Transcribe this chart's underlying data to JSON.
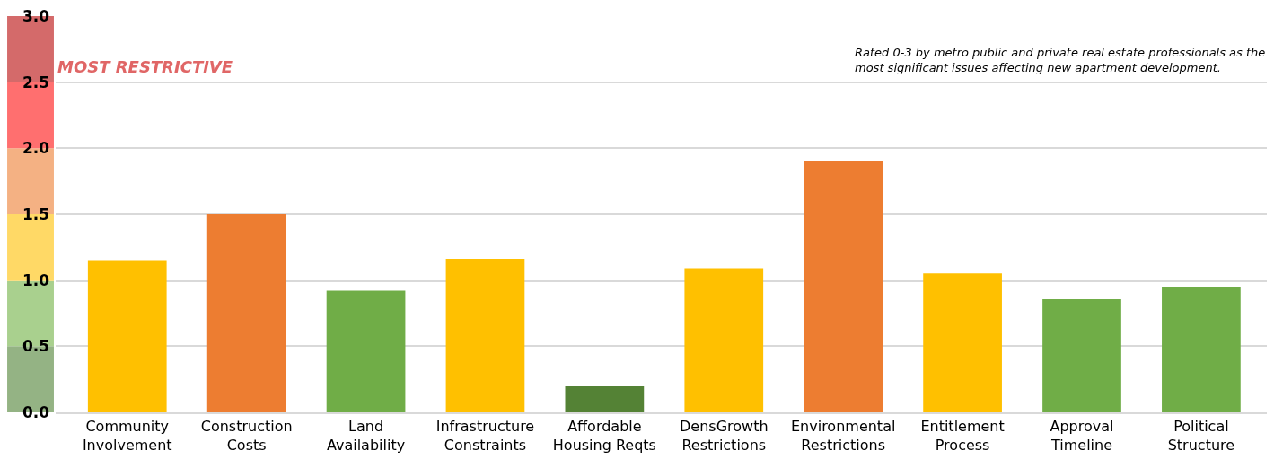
{
  "chart_data": {
    "type": "bar",
    "categories": [
      "Community Involvement",
      "Construction Costs",
      "Land Availability",
      "Infrastructure Constraints",
      "Affordable Housing Reqts",
      "DensGrowth Restrictions",
      "Environmental Restrictions",
      "Entitlement Process",
      "Approval Timeline",
      "Political Structure"
    ],
    "values": [
      1.15,
      1.5,
      0.92,
      1.16,
      0.2,
      1.09,
      1.9,
      1.05,
      0.86,
      0.95
    ],
    "colors": [
      "#ffc000",
      "#ed7d31",
      "#70ad47",
      "#ffc000",
      "#548235",
      "#ffc000",
      "#ed7d31",
      "#ffc000",
      "#70ad47",
      "#70ad47"
    ],
    "ylim": [
      0,
      3
    ],
    "yticks": [
      {
        "value": 0,
        "label": "0.0"
      },
      {
        "value": 0.5,
        "label": "0.5"
      },
      {
        "value": 1,
        "label": "1.0"
      },
      {
        "value": 1.5,
        "label": "1.5"
      },
      {
        "value": 2,
        "label": "2.0"
      },
      {
        "value": 2.5,
        "label": "2.5"
      },
      {
        "value": 3,
        "label": "3.0"
      }
    ],
    "grid": "y",
    "annotations": [
      "MOST RESTRICTIVE",
      "Rated 0-3 by metro public and private real estate professionals as the\nmost significant issues affecting new apartment development."
    ]
  }
}
